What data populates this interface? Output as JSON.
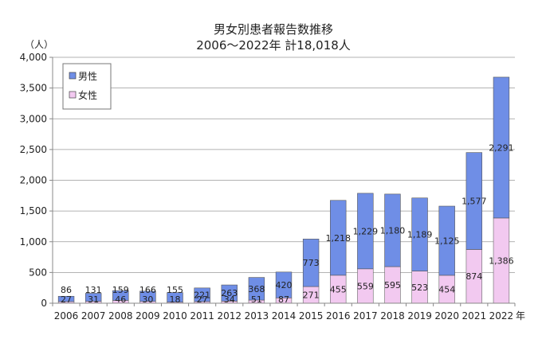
{
  "chart_data": {
    "type": "bar",
    "stacked": true,
    "title": "男女別患者報告数推移",
    "subtitle": "2006～2022年  計18,018人",
    "ylabel": "（人）",
    "x_unit": "年",
    "categories": [
      "2006",
      "2007",
      "2008",
      "2009",
      "2010",
      "2011",
      "2012",
      "2013",
      "2014",
      "2015",
      "2016",
      "2017",
      "2018",
      "2019",
      "2020",
      "2021",
      "2022"
    ],
    "y_ticks": [
      "0",
      "500",
      "1,000",
      "1,500",
      "2,000",
      "2,500",
      "3,000",
      "3,500",
      "4,000"
    ],
    "ylim": [
      0,
      4000
    ],
    "grid": true,
    "legend_position": "top-left",
    "series": [
      {
        "name": "女性",
        "color": "#f2c9f0",
        "values": [
          27,
          31,
          46,
          30,
          18,
          27,
          34,
          51,
          87,
          271,
          455,
          559,
          595,
          523,
          454,
          874,
          1386
        ],
        "labels": [
          "27",
          "31",
          "46",
          "30",
          "18",
          "27",
          "34",
          "51",
          "87",
          "271",
          "455",
          "559",
          "595",
          "523",
          "454",
          "874",
          "1,386"
        ]
      },
      {
        "name": "男性",
        "color": "#6f8ee6",
        "values": [
          86,
          131,
          159,
          166,
          155,
          221,
          263,
          368,
          420,
          773,
          1218,
          1229,
          1180,
          1189,
          1125,
          1577,
          2291
        ],
        "labels": [
          "86",
          "131",
          "159",
          "166",
          "155",
          "221",
          "263",
          "368",
          "420",
          "773",
          "1,218",
          "1,229",
          "1,180",
          "1,189",
          "1,125",
          "1,577",
          "2,291"
        ]
      }
    ]
  }
}
